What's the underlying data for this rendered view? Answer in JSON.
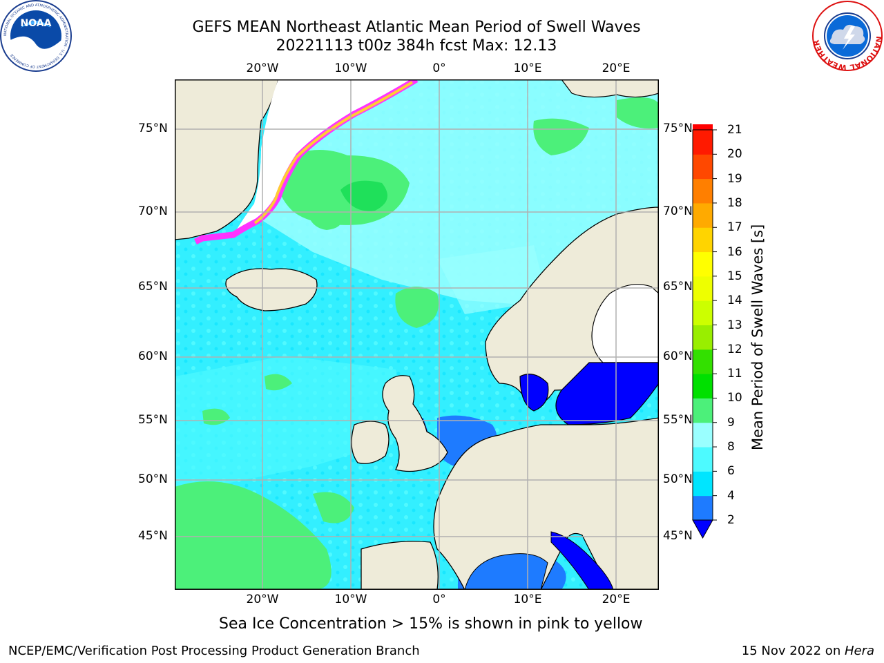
{
  "header": {
    "title_line1": "GEFS MEAN Northeast Atlantic Mean Period of Swell Waves",
    "title_line2": "20221113 t00z 384h fcst   Max: 12.13"
  },
  "logos": {
    "noaa_text": "NOAA",
    "noaa_ring_text": "NATIONAL OCEANIC AND ATMOSPHERIC ADMINISTRATION · U.S. DEPARTMENT OF COMMERCE",
    "nws_ring_text": "NATIONAL WEATHER SERVICE"
  },
  "map": {
    "lon_labels": [
      "20°W",
      "10°W",
      "0°",
      "10°E",
      "20°E"
    ],
    "lat_labels": [
      "75°N",
      "70°N",
      "65°N",
      "60°N",
      "55°N",
      "50°N",
      "45°N"
    ]
  },
  "colorbar": {
    "title": "Mean Period of Swell Waves [s]",
    "ticks": [
      "2",
      "4",
      "6",
      "8",
      "9",
      "10",
      "11",
      "12",
      "13",
      "14",
      "15",
      "16",
      "17",
      "18",
      "19",
      "20",
      "21"
    ],
    "colors": [
      "#0000ff",
      "#1e7bff",
      "#00e5ff",
      "#4dfaff",
      "#9affff",
      "#4cf07a",
      "#00e000",
      "#33e000",
      "#99ee00",
      "#ccff00",
      "#eeff00",
      "#ffff00",
      "#ffd400",
      "#ffaa00",
      "#ff7f00",
      "#ff4800",
      "#ff1a00",
      "#ff0000"
    ]
  },
  "colors": {
    "ocean_base": "#33efff",
    "land": "#eeebd9",
    "ice_pink": "#ff33ff",
    "ice_yellow": "#ffff00",
    "grid": "#b0b0b0"
  },
  "caption": "Sea Ice Concentration > 15% is shown in pink to yellow",
  "footer": {
    "left": "NCEP/EMC/Verification Post Processing Product Generation Branch",
    "date": "15 Nov 2022 on ",
    "machine": "Hera"
  }
}
